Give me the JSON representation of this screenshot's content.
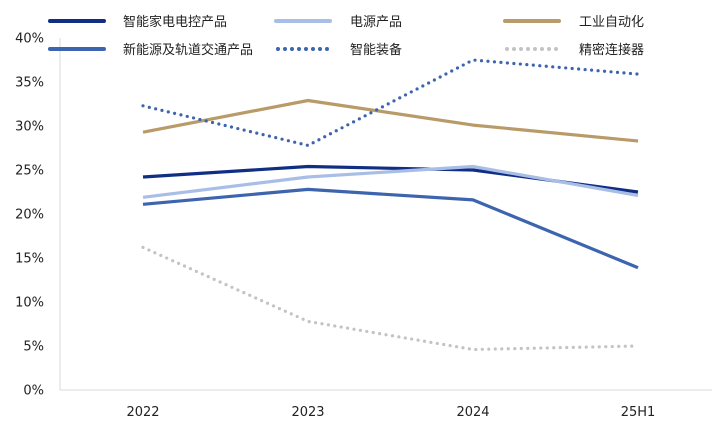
{
  "chart_data": {
    "type": "line",
    "title": "",
    "xlabel": "",
    "ylabel": "",
    "categories": [
      "2022",
      "2023",
      "2024",
      "25H1"
    ],
    "y_ticks": [
      "0%",
      "5%",
      "10%",
      "15%",
      "20%",
      "25%",
      "30%",
      "35%",
      "40%"
    ],
    "ylim": [
      0,
      40
    ],
    "y_unit": "%",
    "grid": false,
    "legend_position": "top",
    "series": [
      {
        "name": "智能家电电控产品",
        "values": [
          24.2,
          25.4,
          25.0,
          22.5
        ],
        "color": "#102F84",
        "style": "solid"
      },
      {
        "name": "电源产品",
        "values": [
          21.9,
          24.2,
          25.4,
          22.1
        ],
        "color": "#A9BEE6",
        "style": "solid"
      },
      {
        "name": "工业自动化",
        "values": [
          29.3,
          32.9,
          30.1,
          28.3
        ],
        "color": "#B99A69",
        "style": "solid"
      },
      {
        "name": "新能源及轨道交通产品",
        "values": [
          21.1,
          22.8,
          21.6,
          13.9
        ],
        "color": "#3D64AE",
        "style": "solid"
      },
      {
        "name": "智能装备",
        "values": [
          32.3,
          27.8,
          37.5,
          35.9
        ],
        "color": "#3D64AE",
        "style": "dotted"
      },
      {
        "name": "精密连接器",
        "values": [
          16.2,
          7.8,
          4.6,
          5.0
        ],
        "color": "#C3C3C3",
        "style": "dotted"
      }
    ]
  }
}
